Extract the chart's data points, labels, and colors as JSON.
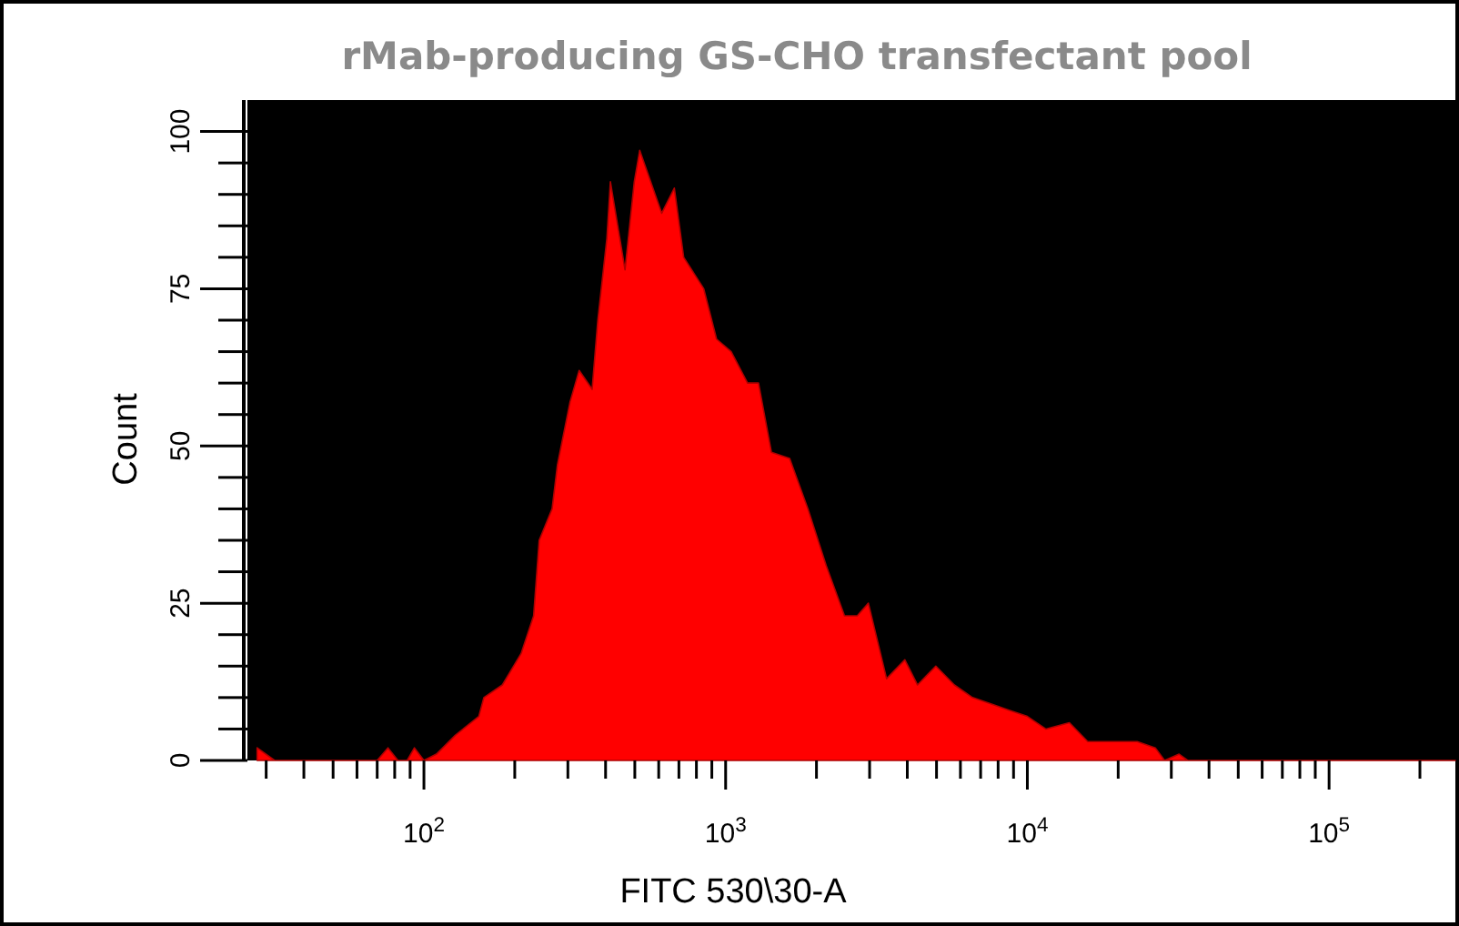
{
  "chart_data": {
    "type": "area",
    "title": "rMab-producing GS-CHO transfectant pool",
    "xlabel": "FITC 530\\30-A",
    "ylabel": "Count",
    "log": "x",
    "grid": false,
    "xlim": [
      26,
      262144
    ],
    "ylim": [
      0,
      105
    ],
    "xticks": [
      {
        "value": 30,
        "label": null
      },
      {
        "value": 40,
        "label": null
      },
      {
        "value": 50,
        "label": null
      },
      {
        "value": 60,
        "label": null
      },
      {
        "value": 70,
        "label": null
      },
      {
        "value": 80,
        "label": null
      },
      {
        "value": 90,
        "label": null
      },
      {
        "value": 100,
        "label": "10$^{2}$"
      },
      {
        "value": 200,
        "label": null
      },
      {
        "value": 300,
        "label": null
      },
      {
        "value": 400,
        "label": null
      },
      {
        "value": 500,
        "label": null
      },
      {
        "value": 600,
        "label": null
      },
      {
        "value": 700,
        "label": null
      },
      {
        "value": 800,
        "label": null
      },
      {
        "value": 900,
        "label": null
      },
      {
        "value": 1000,
        "label": "10$^{3}$"
      },
      {
        "value": 2000,
        "label": null
      },
      {
        "value": 3000,
        "label": null
      },
      {
        "value": 4000,
        "label": null
      },
      {
        "value": 5000,
        "label": null
      },
      {
        "value": 6000,
        "label": null
      },
      {
        "value": 7000,
        "label": null
      },
      {
        "value": 8000,
        "label": null
      },
      {
        "value": 9000,
        "label": null
      },
      {
        "value": 10000,
        "label": "10$^{4}$"
      },
      {
        "value": 20000,
        "label": null
      },
      {
        "value": 30000,
        "label": null
      },
      {
        "value": 40000,
        "label": null
      },
      {
        "value": 50000,
        "label": null
      },
      {
        "value": 60000,
        "label": null
      },
      {
        "value": 70000,
        "label": null
      },
      {
        "value": 80000,
        "label": null
      },
      {
        "value": 90000,
        "label": null
      },
      {
        "value": 100000,
        "label": "10$^{5}$"
      },
      {
        "value": 200000,
        "label": null
      }
    ],
    "yticks": [
      0,
      {
        "value": 5,
        "label": null
      },
      {
        "value": 10,
        "label": null
      },
      {
        "value": 15,
        "label": null
      },
      {
        "value": 20,
        "label": null
      },
      25,
      {
        "value": 30,
        "label": null
      },
      {
        "value": 35,
        "label": null
      },
      {
        "value": 40,
        "label": null
      },
      {
        "value": 45,
        "label": null
      },
      50,
      {
        "value": 55,
        "label": null
      },
      {
        "value": 60,
        "label": null
      },
      {
        "value": 65,
        "label": null
      },
      {
        "value": 70,
        "label": null
      },
      75,
      {
        "value": 80,
        "label": null
      },
      {
        "value": 85,
        "label": null
      },
      {
        "value": 90,
        "label": null
      },
      {
        "value": 95,
        "label": null
      },
      100
    ],
    "series": [
      {
        "color": "#ff0000",
        "x": [
          28,
          32,
          70,
          76,
          82,
          88,
          93,
          100,
          110,
          127,
          152,
          158,
          182,
          210,
          231,
          241,
          266,
          277,
          305,
          327,
          361,
          377,
          404,
          415,
          464,
          498,
          519,
          614,
          676,
          726,
          846,
          933,
          1043,
          1182,
          1285,
          1418,
          1630,
          1874,
          2154,
          2477,
          2730,
          2972,
          3415,
          3926,
          4325,
          4973,
          5728,
          6577,
          7568,
          8690,
          10000,
          11510,
          13780,
          15850,
          19280,
          23110,
          26550,
          28500,
          31840,
          34000,
          262144
        ],
        "values": [
          2,
          0,
          0,
          2,
          0,
          0,
          2,
          0,
          1,
          4,
          7,
          10,
          12,
          17,
          23,
          35,
          40,
          47,
          57,
          62,
          59,
          70,
          83,
          92,
          78,
          92,
          97,
          87,
          91,
          80,
          75,
          67,
          65,
          60,
          60,
          49,
          48,
          40,
          31,
          23,
          23,
          25,
          13,
          16,
          12,
          15,
          12,
          10,
          9,
          8,
          7,
          5,
          6,
          3,
          3,
          3,
          2,
          0,
          1,
          0,
          0
        ]
      }
    ]
  }
}
